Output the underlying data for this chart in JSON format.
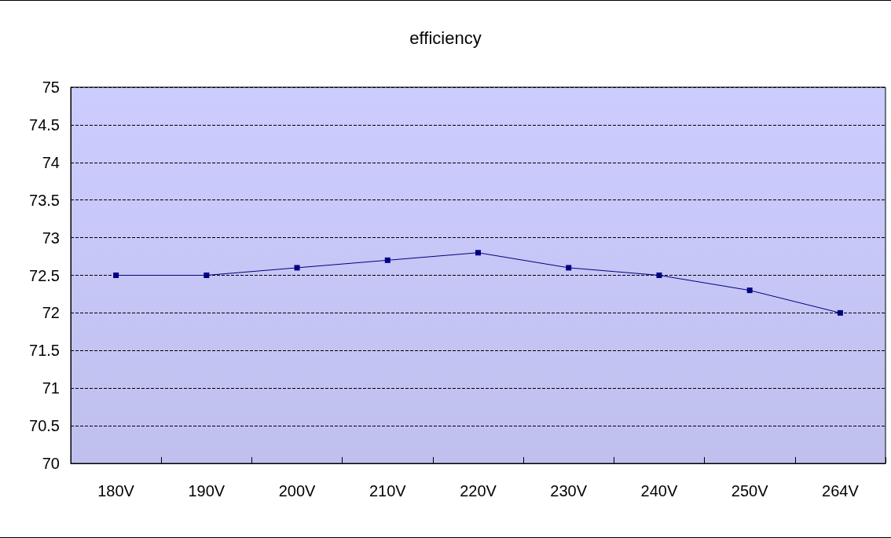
{
  "chart_data": {
    "type": "line",
    "title": "efficiency",
    "categories": [
      "180V",
      "190V",
      "200V",
      "210V",
      "220V",
      "230V",
      "240V",
      "250V",
      "264V"
    ],
    "series": [
      {
        "color": "#000080",
        "values": [
          72.5,
          72.5,
          72.6,
          72.7,
          72.8,
          72.6,
          72.5,
          72.3,
          72.0
        ]
      }
    ],
    "ylim": [
      70,
      75
    ],
    "yticks": [
      70,
      70.5,
      71,
      71.5,
      72,
      72.5,
      73,
      73.5,
      74,
      74.5,
      75
    ],
    "grid": "y",
    "marker": "square",
    "line_style": "solid"
  }
}
